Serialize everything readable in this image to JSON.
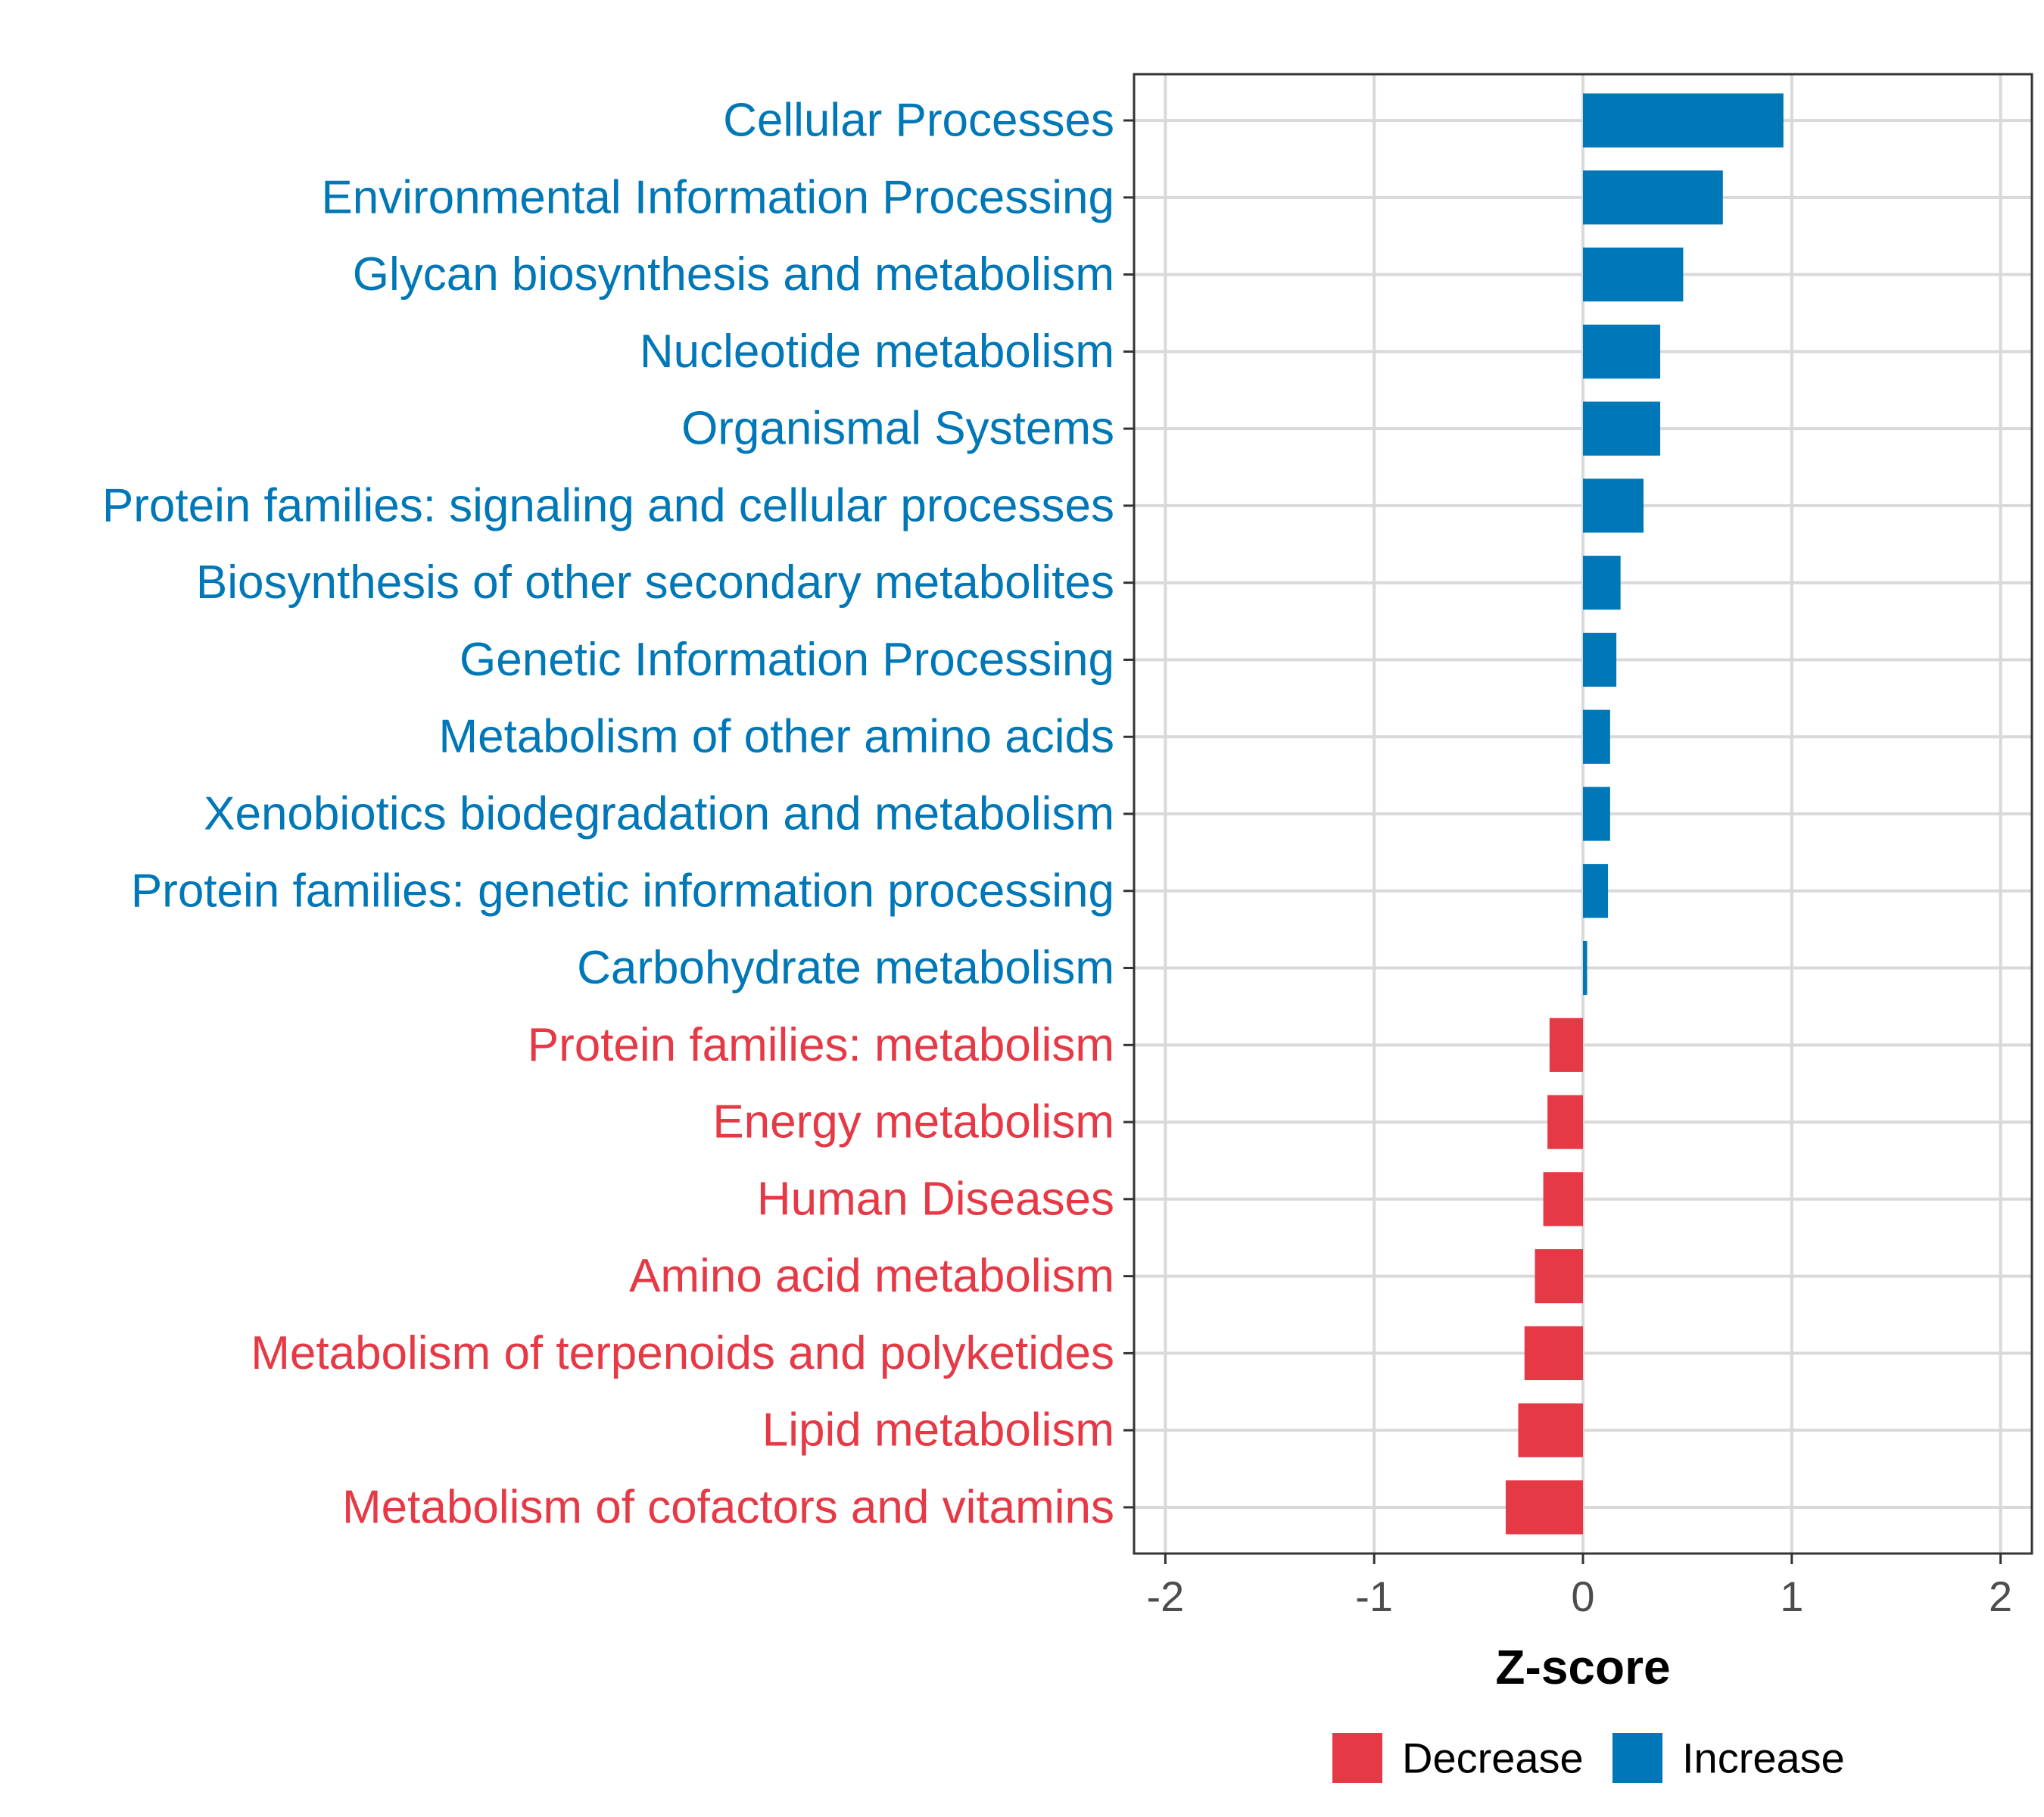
{
  "chart_data": {
    "type": "bar",
    "orientation": "horizontal",
    "title": "",
    "xlabel": "Z-score",
    "ylabel": "",
    "xlim": [
      -2.15,
      2.15
    ],
    "xticks": [
      -2,
      -1,
      0,
      1,
      2
    ],
    "xtick_labels": [
      "-2",
      "-1",
      "0",
      "1",
      "2"
    ],
    "grid": true,
    "legend_position": "bottom",
    "categories": [
      "Cellular Processes",
      "Environmental Information Processing",
      "Glycan biosynthesis and metabolism",
      "Nucleotide metabolism",
      "Organismal Systems",
      "Protein families: signaling and cellular processes",
      "Biosynthesis of other secondary metabolites",
      "Genetic Information Processing",
      "Metabolism of other amino acids",
      "Xenobiotics biodegradation and metabolism",
      "Protein families: genetic information processing",
      "Carbohydrate metabolism",
      "Protein families: metabolism",
      "Energy metabolism",
      "Human Diseases",
      "Amino acid metabolism",
      "Metabolism of terpenoids and polyketides",
      "Lipid metabolism",
      "Metabolism of cofactors and vitamins"
    ],
    "values": [
      0.96,
      0.67,
      0.48,
      0.37,
      0.37,
      0.29,
      0.18,
      0.16,
      0.13,
      0.13,
      0.12,
      0.02,
      -0.16,
      -0.17,
      -0.19,
      -0.23,
      -0.28,
      -0.31,
      -0.37
    ],
    "groups": [
      "Increase",
      "Increase",
      "Increase",
      "Increase",
      "Increase",
      "Increase",
      "Increase",
      "Increase",
      "Increase",
      "Increase",
      "Increase",
      "Increase",
      "Decrease",
      "Decrease",
      "Decrease",
      "Decrease",
      "Decrease",
      "Decrease",
      "Decrease"
    ],
    "legend": [
      {
        "name": "Decrease",
        "color": "#E63946"
      },
      {
        "name": "Increase",
        "color": "#0077B6"
      }
    ]
  }
}
